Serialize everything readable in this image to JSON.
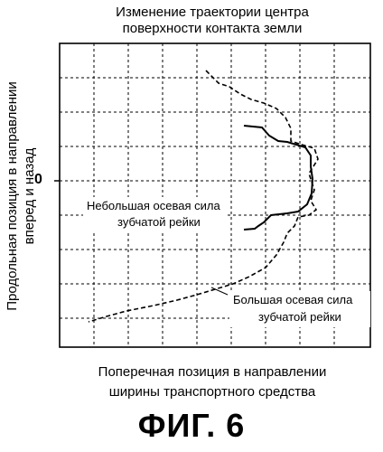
{
  "chart_data": {
    "type": "line",
    "title_lines": [
      "Изменение траектории центра",
      "поверхности контакта земли"
    ],
    "xlabel_lines": [
      "Поперечная позиция в направлении",
      "ширины транспортного средства"
    ],
    "ylabel_lines": [
      "Продольная позиция в направлении",
      "вперед и назад"
    ],
    "y_tick_label": "0",
    "grid": true,
    "series": [
      {
        "name": "Небольшая осевая сила зубчатой рейки",
        "label_lines": [
          "Небольшая осевая сила",
          "зубчатой рейки"
        ],
        "style": "solid",
        "points": [
          [
            270,
            139
          ],
          [
            290,
            141
          ],
          [
            298,
            150
          ],
          [
            308,
            156
          ],
          [
            318,
            157
          ],
          [
            328,
            160
          ],
          [
            338,
            163
          ],
          [
            344,
            172
          ],
          [
            344,
            184
          ],
          [
            346,
            198
          ],
          [
            345,
            214
          ],
          [
            340,
            226
          ],
          [
            330,
            234
          ],
          [
            318,
            236
          ],
          [
            300,
            238
          ],
          [
            292,
            246
          ],
          [
            286,
            250
          ],
          [
            282,
            253
          ],
          [
            270,
            254
          ]
        ]
      },
      {
        "name": "Большая осевая сила зубчатой рейки",
        "label_lines": [
          "Большая осевая сила",
          "зубчатой рейки"
        ],
        "style": "dashed",
        "points": [
          [
            228,
            78
          ],
          [
            242,
            92
          ],
          [
            254,
            96
          ],
          [
            266,
            104
          ],
          [
            278,
            110
          ],
          [
            292,
            114
          ],
          [
            306,
            120
          ],
          [
            316,
            130
          ],
          [
            322,
            142
          ],
          [
            322,
            156
          ],
          [
            334,
            160
          ],
          [
            348,
            164
          ],
          [
            352,
            176
          ],
          [
            342,
            192
          ],
          [
            348,
            210
          ],
          [
            344,
            222
          ],
          [
            350,
            232
          ],
          [
            342,
            238
          ],
          [
            330,
            240
          ],
          [
            326,
            250
          ],
          [
            318,
            258
          ],
          [
            314,
            268
          ],
          [
            306,
            282
          ],
          [
            294,
            296
          ],
          [
            276,
            306
          ],
          [
            258,
            314
          ],
          [
            238,
            320
          ],
          [
            218,
            326
          ],
          [
            196,
            332
          ],
          [
            170,
            338
          ],
          [
            140,
            344
          ],
          [
            118,
            350
          ],
          [
            98,
            356
          ]
        ]
      }
    ]
  },
  "figure_label": "ФИГ. 6"
}
